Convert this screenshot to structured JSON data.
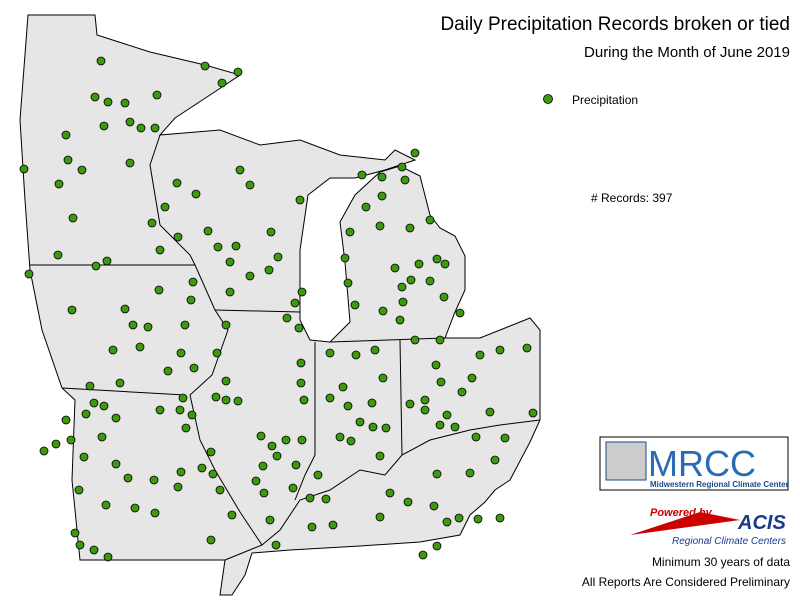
{
  "header": {
    "title": "Daily Precipitation Records broken or tied",
    "subtitle": "During the Month of June 2019"
  },
  "legend": {
    "label": "Precipitation"
  },
  "summary": "# Records: 397",
  "logos": {
    "mrcc": "MRCC",
    "mrcc_name": "Midwestern Regional Climate Center",
    "powered_by": "Powered by",
    "acis": "ACIS",
    "acis_name": "Regional Climate Centers"
  },
  "footer": {
    "note": "Minimum 30 years of data",
    "disclaimer": "All Reports Are Considered Preliminary"
  }
}
